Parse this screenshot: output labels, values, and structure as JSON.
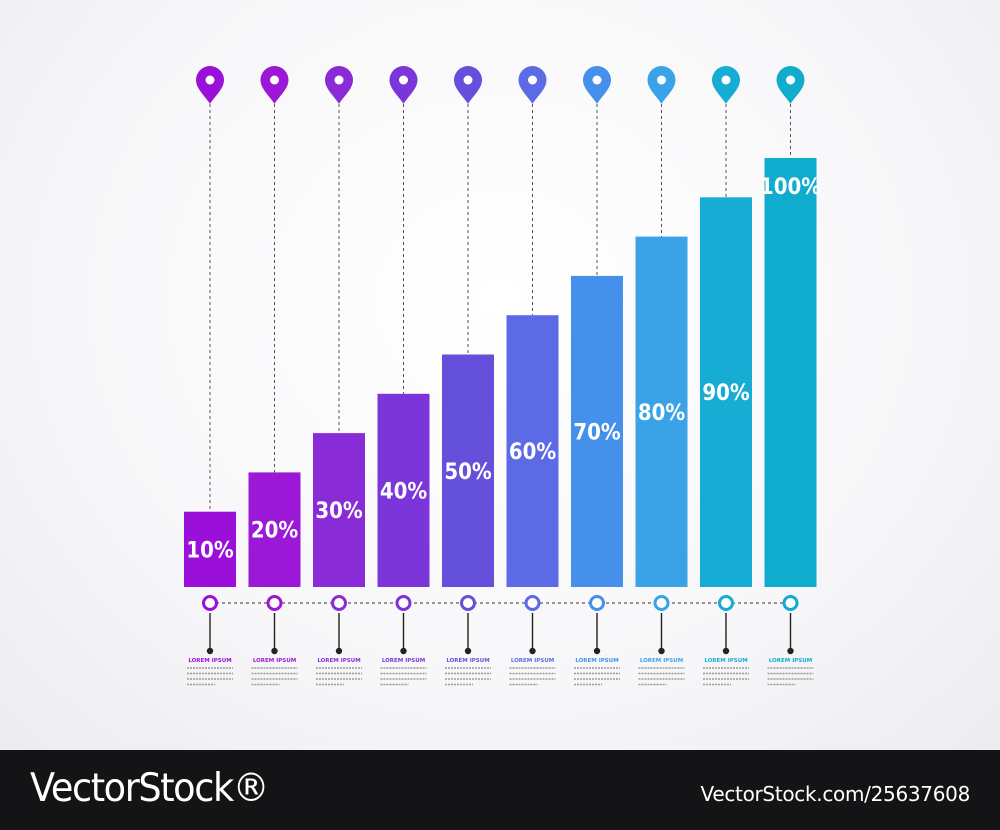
{
  "chart_data": {
    "type": "bar",
    "categories": [
      "LOREM IPSUM",
      "LOREM IPSUM",
      "LOREM IPSUM",
      "LOREM IPSUM",
      "LOREM IPSUM",
      "LOREM IPSUM",
      "LOREM IPSUM",
      "LOREM IPSUM",
      "LOREM IPSUM",
      "LOREM IPSUM"
    ],
    "values": [
      10,
      20,
      30,
      40,
      50,
      60,
      70,
      80,
      90,
      100
    ],
    "data_labels": [
      "10%",
      "20%",
      "30%",
      "40%",
      "50%",
      "60%",
      "70%",
      "80%",
      "90%",
      "100%"
    ],
    "colors": [
      "#9a10d8",
      "#9b18d6",
      "#8a2bd8",
      "#7b35d8",
      "#6550dc",
      "#5c6ae6",
      "#4590ea",
      "#3aa2e6",
      "#17acd3",
      "#10acce"
    ],
    "title": "",
    "xlabel": "",
    "ylabel": "",
    "ylim": [
      0,
      100
    ],
    "grid": false,
    "legend": "none"
  },
  "footer": {
    "brand_left": "VectorStock®",
    "brand_right": "VectorStock.com/25637608"
  },
  "icons": {
    "top": "map-pin-icon",
    "axis": "ring-marker-icon"
  }
}
